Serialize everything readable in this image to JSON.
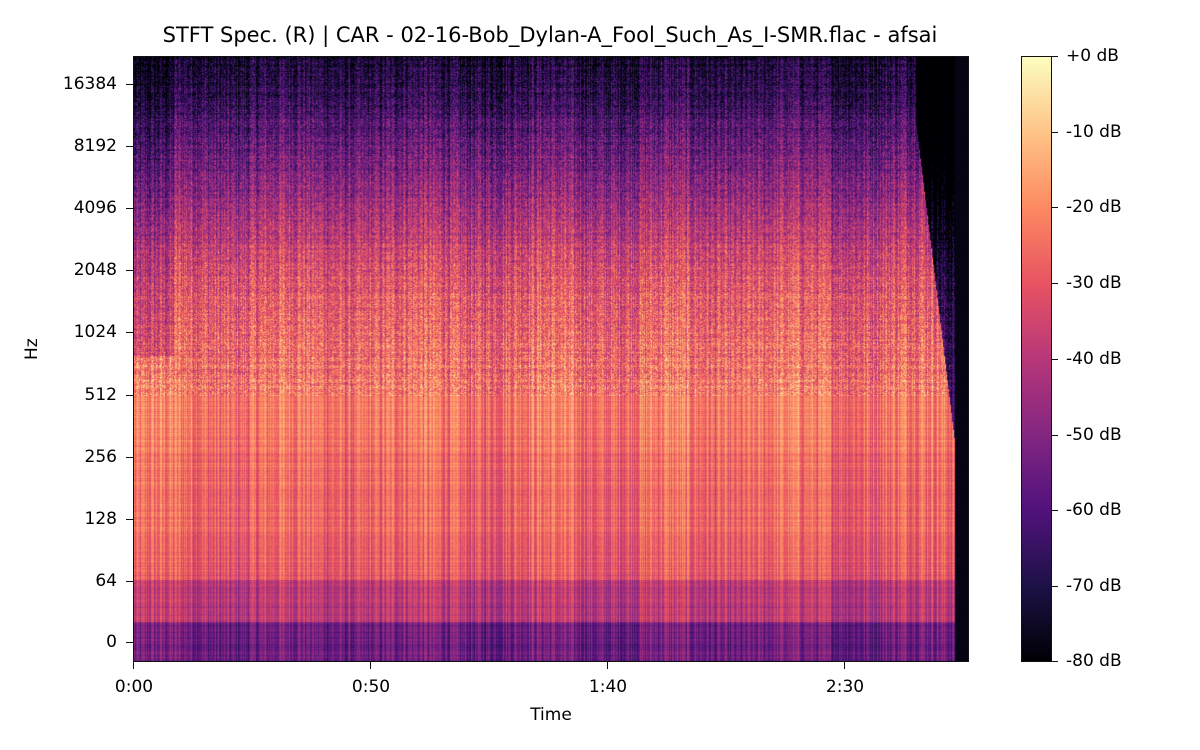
{
  "chart_data": {
    "type": "heatmap",
    "subtype": "spectrogram",
    "title": "STFT Spec. (R) | CAR - 02-16-Bob_Dylan-A_Fool_Such_As_I-SMR.flac - afsai",
    "xlabel": "Time",
    "ylabel": "Hz",
    "x_ticks": [
      {
        "label": "0:00",
        "seconds": 0
      },
      {
        "label": "0:50",
        "seconds": 50
      },
      {
        "label": "1:40",
        "seconds": 100
      },
      {
        "label": "2:30",
        "seconds": 150
      }
    ],
    "y_ticks": [
      "16384",
      "8192",
      "4096",
      "2048",
      "1024",
      "512",
      "256",
      "128",
      "64",
      "0"
    ],
    "y_scale": "log2",
    "xlim_seconds": [
      0,
      188
    ],
    "audio_end_seconds": 185,
    "colorbar": {
      "colormap": "magma",
      "ticks": [
        "+0 dB",
        "-10 dB",
        "-20 dB",
        "-30 dB",
        "-40 dB",
        "-50 dB",
        "-60 dB",
        "-70 dB",
        "-80 dB"
      ],
      "range_db": [
        -80,
        0
      ],
      "colors": [
        "#fcfdbf",
        "#fec488",
        "#fc8961",
        "#e85362",
        "#b73779",
        "#832681",
        "#51127c",
        "#1d1147",
        "#000004"
      ]
    },
    "energy_profile_db_by_band": [
      {
        "band_hz": "0-32",
        "approx_db": -55
      },
      {
        "band_hz": "32-90",
        "approx_db": -40
      },
      {
        "band_hz": "90-512",
        "approx_db": -22
      },
      {
        "band_hz": "512-2048",
        "approx_db": -32
      },
      {
        "band_hz": "2048-8192",
        "approx_db": -50
      },
      {
        "band_hz": "8192-22050",
        "approx_db": -72
      }
    ],
    "legend_position": "right"
  }
}
